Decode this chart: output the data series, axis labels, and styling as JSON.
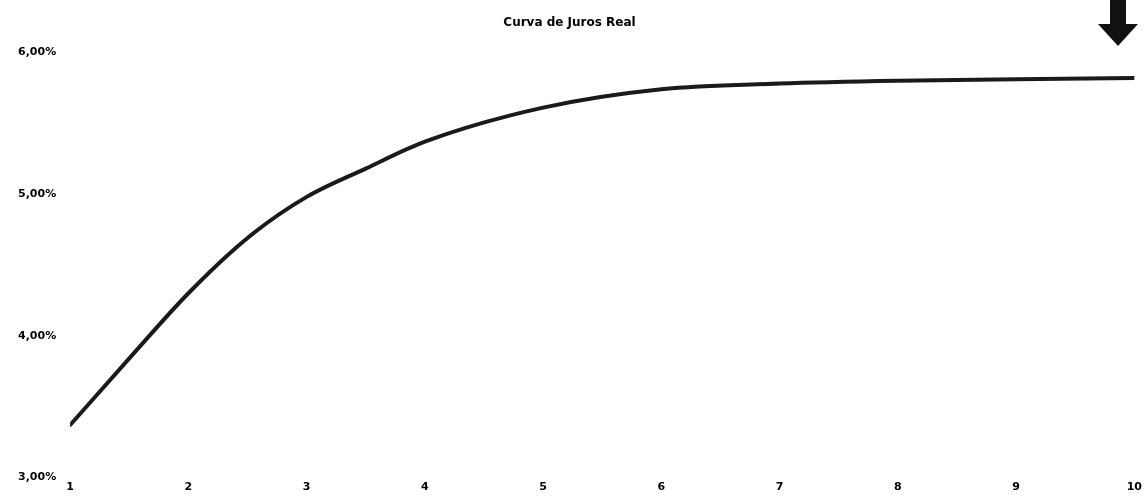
{
  "chart_data": {
    "type": "line",
    "title": "Curva de Juros Real",
    "x": [
      1,
      1.5,
      2,
      2.5,
      3,
      3.5,
      4,
      5,
      6,
      7,
      8,
      9,
      10
    ],
    "series": [
      {
        "color": "#1a1a1a",
        "values": [
          3.37,
          3.84,
          4.3,
          4.69,
          4.98,
          5.18,
          5.37,
          5.61,
          5.74,
          5.78,
          5.8,
          5.81,
          5.82
        ]
      }
    ],
    "xlim": [
      1,
      10
    ],
    "xticks": [
      1,
      2,
      3,
      4,
      5,
      6,
      7,
      8,
      9,
      10
    ],
    "ylim": [
      3,
      6
    ],
    "yticks": [
      {
        "value": 3,
        "label": "3,00%"
      },
      {
        "value": 4,
        "label": "4,00%"
      },
      {
        "value": 5,
        "label": "5,00%"
      },
      {
        "value": 6,
        "label": "6,00%"
      }
    ],
    "grid": false,
    "legend": false,
    "marker": "none",
    "line_style": "solid"
  }
}
